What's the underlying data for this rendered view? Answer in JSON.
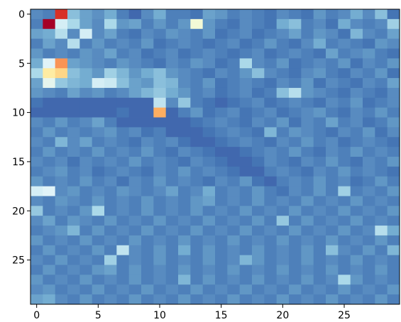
{
  "chart_data": {
    "type": "heatmap",
    "title": "",
    "xlabel": "",
    "ylabel": "",
    "n_rows": 30,
    "n_cols": 30,
    "x_ticks": [
      0,
      5,
      10,
      15,
      20,
      25
    ],
    "y_ticks": [
      0,
      5,
      10,
      15,
      20,
      25
    ],
    "x_range": [
      -0.5,
      29.5
    ],
    "y_range": [
      -0.5,
      29.5
    ],
    "y_origin": "top",
    "colormap": "RdYlBu_r",
    "vmin": 0,
    "vmax": 1,
    "colorbar": false,
    "grid": false,
    "values": [
      [
        0.14,
        0.12,
        0.9,
        0.24,
        0.18,
        0.15,
        0.2,
        0.12,
        0.08,
        0.14,
        0.2,
        0.12,
        0.12,
        0.1,
        0.18,
        0.16,
        0.12,
        0.14,
        0.12,
        0.1,
        0.14,
        0.12,
        0.1,
        0.16,
        0.12,
        0.14,
        0.2,
        0.14,
        0.24,
        0.1
      ],
      [
        0.12,
        1.0,
        0.38,
        0.3,
        0.18,
        0.14,
        0.3,
        0.16,
        0.18,
        0.12,
        0.16,
        0.12,
        0.16,
        0.46,
        0.16,
        0.12,
        0.1,
        0.14,
        0.12,
        0.1,
        0.2,
        0.24,
        0.12,
        0.14,
        0.1,
        0.2,
        0.14,
        0.12,
        0.14,
        0.28
      ],
      [
        0.18,
        0.2,
        0.32,
        0.14,
        0.38,
        0.14,
        0.18,
        0.12,
        0.1,
        0.14,
        0.12,
        0.16,
        0.14,
        0.12,
        0.16,
        0.1,
        0.12,
        0.14,
        0.1,
        0.12,
        0.14,
        0.18,
        0.12,
        0.16,
        0.14,
        0.1,
        0.22,
        0.14,
        0.12,
        0.18
      ],
      [
        0.12,
        0.18,
        0.14,
        0.32,
        0.12,
        0.16,
        0.12,
        0.14,
        0.12,
        0.16,
        0.1,
        0.12,
        0.14,
        0.12,
        0.1,
        0.12,
        0.14,
        0.1,
        0.12,
        0.16,
        0.12,
        0.1,
        0.14,
        0.2,
        0.12,
        0.14,
        0.12,
        0.1,
        0.16,
        0.14
      ],
      [
        0.16,
        0.12,
        0.14,
        0.12,
        0.16,
        0.14,
        0.18,
        0.12,
        0.14,
        0.1,
        0.12,
        0.14,
        0.1,
        0.12,
        0.14,
        0.12,
        0.1,
        0.12,
        0.14,
        0.1,
        0.12,
        0.14,
        0.12,
        0.1,
        0.18,
        0.12,
        0.14,
        0.16,
        0.12,
        0.1
      ],
      [
        0.2,
        0.4,
        0.74,
        0.18,
        0.16,
        0.14,
        0.12,
        0.16,
        0.14,
        0.12,
        0.1,
        0.14,
        0.12,
        0.16,
        0.14,
        0.1,
        0.12,
        0.3,
        0.14,
        0.12,
        0.16,
        0.1,
        0.12,
        0.14,
        0.12,
        0.16,
        0.1,
        0.14,
        0.12,
        0.16
      ],
      [
        0.3,
        0.56,
        0.62,
        0.24,
        0.2,
        0.16,
        0.28,
        0.22,
        0.16,
        0.2,
        0.24,
        0.16,
        0.14,
        0.12,
        0.1,
        0.14,
        0.12,
        0.16,
        0.24,
        0.14,
        0.12,
        0.1,
        0.14,
        0.16,
        0.12,
        0.1,
        0.14,
        0.12,
        0.16,
        0.1
      ],
      [
        0.18,
        0.42,
        0.26,
        0.22,
        0.2,
        0.38,
        0.36,
        0.24,
        0.18,
        0.16,
        0.24,
        0.22,
        0.14,
        0.12,
        0.16,
        0.1,
        0.12,
        0.14,
        0.12,
        0.1,
        0.14,
        0.12,
        0.16,
        0.1,
        0.14,
        0.12,
        0.1,
        0.14,
        0.12,
        0.18
      ],
      [
        0.16,
        0.14,
        0.12,
        0.18,
        0.14,
        0.16,
        0.12,
        0.14,
        0.18,
        0.22,
        0.26,
        0.2,
        0.16,
        0.12,
        0.14,
        0.1,
        0.12,
        0.14,
        0.1,
        0.12,
        0.24,
        0.32,
        0.16,
        0.14,
        0.12,
        0.1,
        0.14,
        0.12,
        0.1,
        0.14
      ],
      [
        0.1,
        0.08,
        0.08,
        0.08,
        0.08,
        0.08,
        0.08,
        0.08,
        0.08,
        0.08,
        0.34,
        0.14,
        0.26,
        0.12,
        0.1,
        0.08,
        0.1,
        0.12,
        0.14,
        0.1,
        0.12,
        0.14,
        0.12,
        0.1,
        0.14,
        0.12,
        0.16,
        0.1,
        0.12,
        0.14
      ],
      [
        0.08,
        0.08,
        0.08,
        0.08,
        0.08,
        0.08,
        0.08,
        0.1,
        0.08,
        0.08,
        0.7,
        0.08,
        0.12,
        0.16,
        0.1,
        0.12,
        0.14,
        0.1,
        0.12,
        0.14,
        0.1,
        0.12,
        0.14,
        0.16,
        0.12,
        0.1,
        0.14,
        0.12,
        0.16,
        0.12
      ],
      [
        0.14,
        0.12,
        0.16,
        0.12,
        0.14,
        0.18,
        0.12,
        0.08,
        0.08,
        0.08,
        0.08,
        0.08,
        0.08,
        0.1,
        0.12,
        0.14,
        0.12,
        0.1,
        0.14,
        0.12,
        0.16,
        0.1,
        0.14,
        0.12,
        0.18,
        0.12,
        0.14,
        0.1,
        0.12,
        0.16
      ],
      [
        0.12,
        0.16,
        0.12,
        0.14,
        0.12,
        0.14,
        0.16,
        0.12,
        0.14,
        0.1,
        0.12,
        0.08,
        0.08,
        0.08,
        0.1,
        0.12,
        0.14,
        0.12,
        0.1,
        0.22,
        0.12,
        0.16,
        0.14,
        0.12,
        0.1,
        0.14,
        0.12,
        0.16,
        0.1,
        0.14
      ],
      [
        0.14,
        0.12,
        0.22,
        0.14,
        0.18,
        0.12,
        0.14,
        0.12,
        0.1,
        0.14,
        0.12,
        0.14,
        0.1,
        0.08,
        0.08,
        0.1,
        0.12,
        0.14,
        0.12,
        0.1,
        0.14,
        0.12,
        0.16,
        0.12,
        0.14,
        0.1,
        0.12,
        0.14,
        0.12,
        0.1
      ],
      [
        0.12,
        0.16,
        0.12,
        0.14,
        0.12,
        0.16,
        0.12,
        0.14,
        0.12,
        0.16,
        0.12,
        0.1,
        0.14,
        0.12,
        0.1,
        0.08,
        0.08,
        0.1,
        0.12,
        0.14,
        0.12,
        0.16,
        0.12,
        0.1,
        0.14,
        0.12,
        0.16,
        0.12,
        0.14,
        0.12
      ],
      [
        0.14,
        0.12,
        0.14,
        0.1,
        0.14,
        0.12,
        0.14,
        0.12,
        0.16,
        0.12,
        0.14,
        0.12,
        0.1,
        0.14,
        0.12,
        0.1,
        0.08,
        0.08,
        0.1,
        0.14,
        0.12,
        0.1,
        0.14,
        0.12,
        0.16,
        0.12,
        0.1,
        0.14,
        0.12,
        0.16
      ],
      [
        0.12,
        0.14,
        0.16,
        0.12,
        0.14,
        0.1,
        0.12,
        0.14,
        0.12,
        0.1,
        0.14,
        0.12,
        0.16,
        0.12,
        0.14,
        0.12,
        0.1,
        0.08,
        0.08,
        0.12,
        0.14,
        0.12,
        0.1,
        0.14,
        0.12,
        0.16,
        0.12,
        0.14,
        0.12,
        0.1
      ],
      [
        0.16,
        0.12,
        0.14,
        0.12,
        0.16,
        0.12,
        0.14,
        0.1,
        0.14,
        0.12,
        0.16,
        0.12,
        0.14,
        0.12,
        0.1,
        0.14,
        0.12,
        0.16,
        0.1,
        0.08,
        0.12,
        0.14,
        0.12,
        0.16,
        0.12,
        0.14,
        0.1,
        0.12,
        0.16,
        0.12
      ],
      [
        0.38,
        0.4,
        0.14,
        0.16,
        0.12,
        0.14,
        0.12,
        0.16,
        0.14,
        0.12,
        0.14,
        0.18,
        0.12,
        0.14,
        0.2,
        0.12,
        0.14,
        0.12,
        0.16,
        0.12,
        0.1,
        0.14,
        0.12,
        0.16,
        0.12,
        0.28,
        0.12,
        0.14,
        0.12,
        0.16
      ],
      [
        0.14,
        0.12,
        0.16,
        0.14,
        0.12,
        0.16,
        0.12,
        0.14,
        0.12,
        0.16,
        0.12,
        0.14,
        0.12,
        0.16,
        0.18,
        0.12,
        0.14,
        0.12,
        0.16,
        0.12,
        0.14,
        0.12,
        0.16,
        0.12,
        0.14,
        0.12,
        0.16,
        0.12,
        0.14,
        0.12
      ],
      [
        0.26,
        0.12,
        0.14,
        0.12,
        0.16,
        0.3,
        0.12,
        0.14,
        0.12,
        0.16,
        0.12,
        0.14,
        0.12,
        0.16,
        0.12,
        0.14,
        0.12,
        0.16,
        0.12,
        0.14,
        0.12,
        0.16,
        0.12,
        0.14,
        0.12,
        0.16,
        0.12,
        0.14,
        0.12,
        0.16
      ],
      [
        0.14,
        0.18,
        0.12,
        0.16,
        0.14,
        0.12,
        0.16,
        0.12,
        0.14,
        0.12,
        0.16,
        0.12,
        0.14,
        0.12,
        0.16,
        0.12,
        0.14,
        0.12,
        0.16,
        0.12,
        0.26,
        0.12,
        0.16,
        0.12,
        0.14,
        0.12,
        0.16,
        0.12,
        0.14,
        0.12
      ],
      [
        0.12,
        0.14,
        0.16,
        0.22,
        0.12,
        0.16,
        0.12,
        0.14,
        0.12,
        0.16,
        0.12,
        0.14,
        0.12,
        0.16,
        0.12,
        0.14,
        0.12,
        0.16,
        0.12,
        0.14,
        0.12,
        0.16,
        0.12,
        0.14,
        0.12,
        0.16,
        0.12,
        0.14,
        0.32,
        0.2
      ],
      [
        0.16,
        0.12,
        0.14,
        0.12,
        0.16,
        0.12,
        0.14,
        0.12,
        0.16,
        0.12,
        0.14,
        0.12,
        0.16,
        0.12,
        0.14,
        0.12,
        0.16,
        0.12,
        0.14,
        0.12,
        0.16,
        0.12,
        0.14,
        0.12,
        0.16,
        0.12,
        0.14,
        0.12,
        0.16,
        0.12
      ],
      [
        0.12,
        0.16,
        0.12,
        0.14,
        0.12,
        0.16,
        0.12,
        0.34,
        0.14,
        0.12,
        0.16,
        0.12,
        0.2,
        0.12,
        0.16,
        0.12,
        0.14,
        0.12,
        0.16,
        0.12,
        0.14,
        0.12,
        0.16,
        0.12,
        0.24,
        0.14,
        0.12,
        0.16,
        0.12,
        0.22
      ],
      [
        0.14,
        0.12,
        0.16,
        0.12,
        0.14,
        0.12,
        0.28,
        0.12,
        0.14,
        0.12,
        0.16,
        0.12,
        0.14,
        0.12,
        0.16,
        0.12,
        0.14,
        0.22,
        0.16,
        0.12,
        0.14,
        0.12,
        0.16,
        0.12,
        0.14,
        0.12,
        0.16,
        0.12,
        0.14,
        0.12
      ],
      [
        0.12,
        0.16,
        0.12,
        0.14,
        0.12,
        0.16,
        0.18,
        0.12,
        0.16,
        0.12,
        0.14,
        0.12,
        0.16,
        0.12,
        0.14,
        0.12,
        0.16,
        0.12,
        0.14,
        0.12,
        0.16,
        0.12,
        0.14,
        0.12,
        0.16,
        0.12,
        0.14,
        0.12,
        0.16,
        0.12
      ],
      [
        0.16,
        0.12,
        0.14,
        0.12,
        0.16,
        0.12,
        0.14,
        0.12,
        0.16,
        0.12,
        0.14,
        0.12,
        0.22,
        0.12,
        0.16,
        0.12,
        0.14,
        0.12,
        0.16,
        0.12,
        0.14,
        0.12,
        0.16,
        0.12,
        0.14,
        0.3,
        0.16,
        0.12,
        0.14,
        0.12
      ],
      [
        0.14,
        0.16,
        0.12,
        0.14,
        0.12,
        0.16,
        0.12,
        0.14,
        0.12,
        0.16,
        0.12,
        0.14,
        0.12,
        0.16,
        0.12,
        0.14,
        0.12,
        0.16,
        0.12,
        0.14,
        0.12,
        0.16,
        0.12,
        0.14,
        0.12,
        0.16,
        0.12,
        0.14,
        0.12,
        0.16
      ],
      [
        0.18,
        0.2,
        0.14,
        0.12,
        0.16,
        0.12,
        0.14,
        0.12,
        0.16,
        0.12,
        0.14,
        0.12,
        0.16,
        0.12,
        0.14,
        0.12,
        0.16,
        0.12,
        0.14,
        0.12,
        0.16,
        0.12,
        0.14,
        0.12,
        0.16,
        0.12,
        0.14,
        0.12,
        0.16,
        0.12
      ]
    ]
  }
}
